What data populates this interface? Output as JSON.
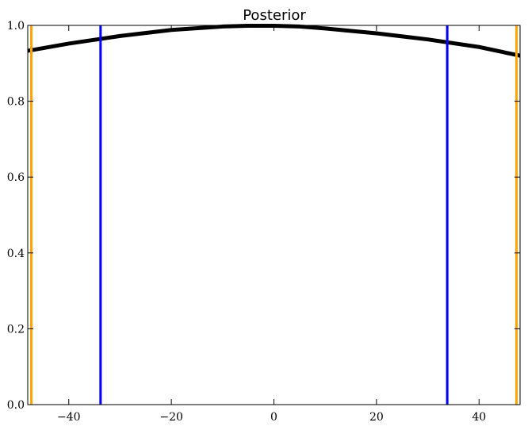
{
  "chart_data": {
    "type": "line",
    "title": "Posterior",
    "xlabel": "",
    "ylabel": "",
    "xlim": [
      -48,
      48
    ],
    "ylim": [
      0.0,
      1.0
    ],
    "xticks": [
      -40,
      -20,
      0,
      20,
      40
    ],
    "xtick_labels": [
      "−40",
      "−20",
      "0",
      "20",
      "40"
    ],
    "yticks": [
      0.0,
      0.2,
      0.4,
      0.6,
      0.8,
      1.0
    ],
    "ytick_labels": [
      "0.0",
      "0.2",
      "0.4",
      "0.6",
      "0.8",
      "1.0"
    ],
    "grid": false,
    "series": [
      {
        "color": "#000000",
        "x": [
          -48,
          -40,
          -30,
          -20,
          -10,
          -5,
          0,
          5,
          10,
          20,
          30,
          40,
          48
        ],
        "y": [
          0.933,
          0.952,
          0.972,
          0.988,
          0.997,
          0.999,
          0.999,
          0.997,
          0.992,
          0.979,
          0.963,
          0.943,
          0.92
        ]
      }
    ],
    "vertical_lines": [
      {
        "x": -47.3,
        "color": "#ffa500"
      },
      {
        "x": 47.3,
        "color": "#ffa500"
      },
      {
        "x": -33.8,
        "color": "#0000ff"
      },
      {
        "x": 33.8,
        "color": "#0000ff"
      }
    ]
  }
}
